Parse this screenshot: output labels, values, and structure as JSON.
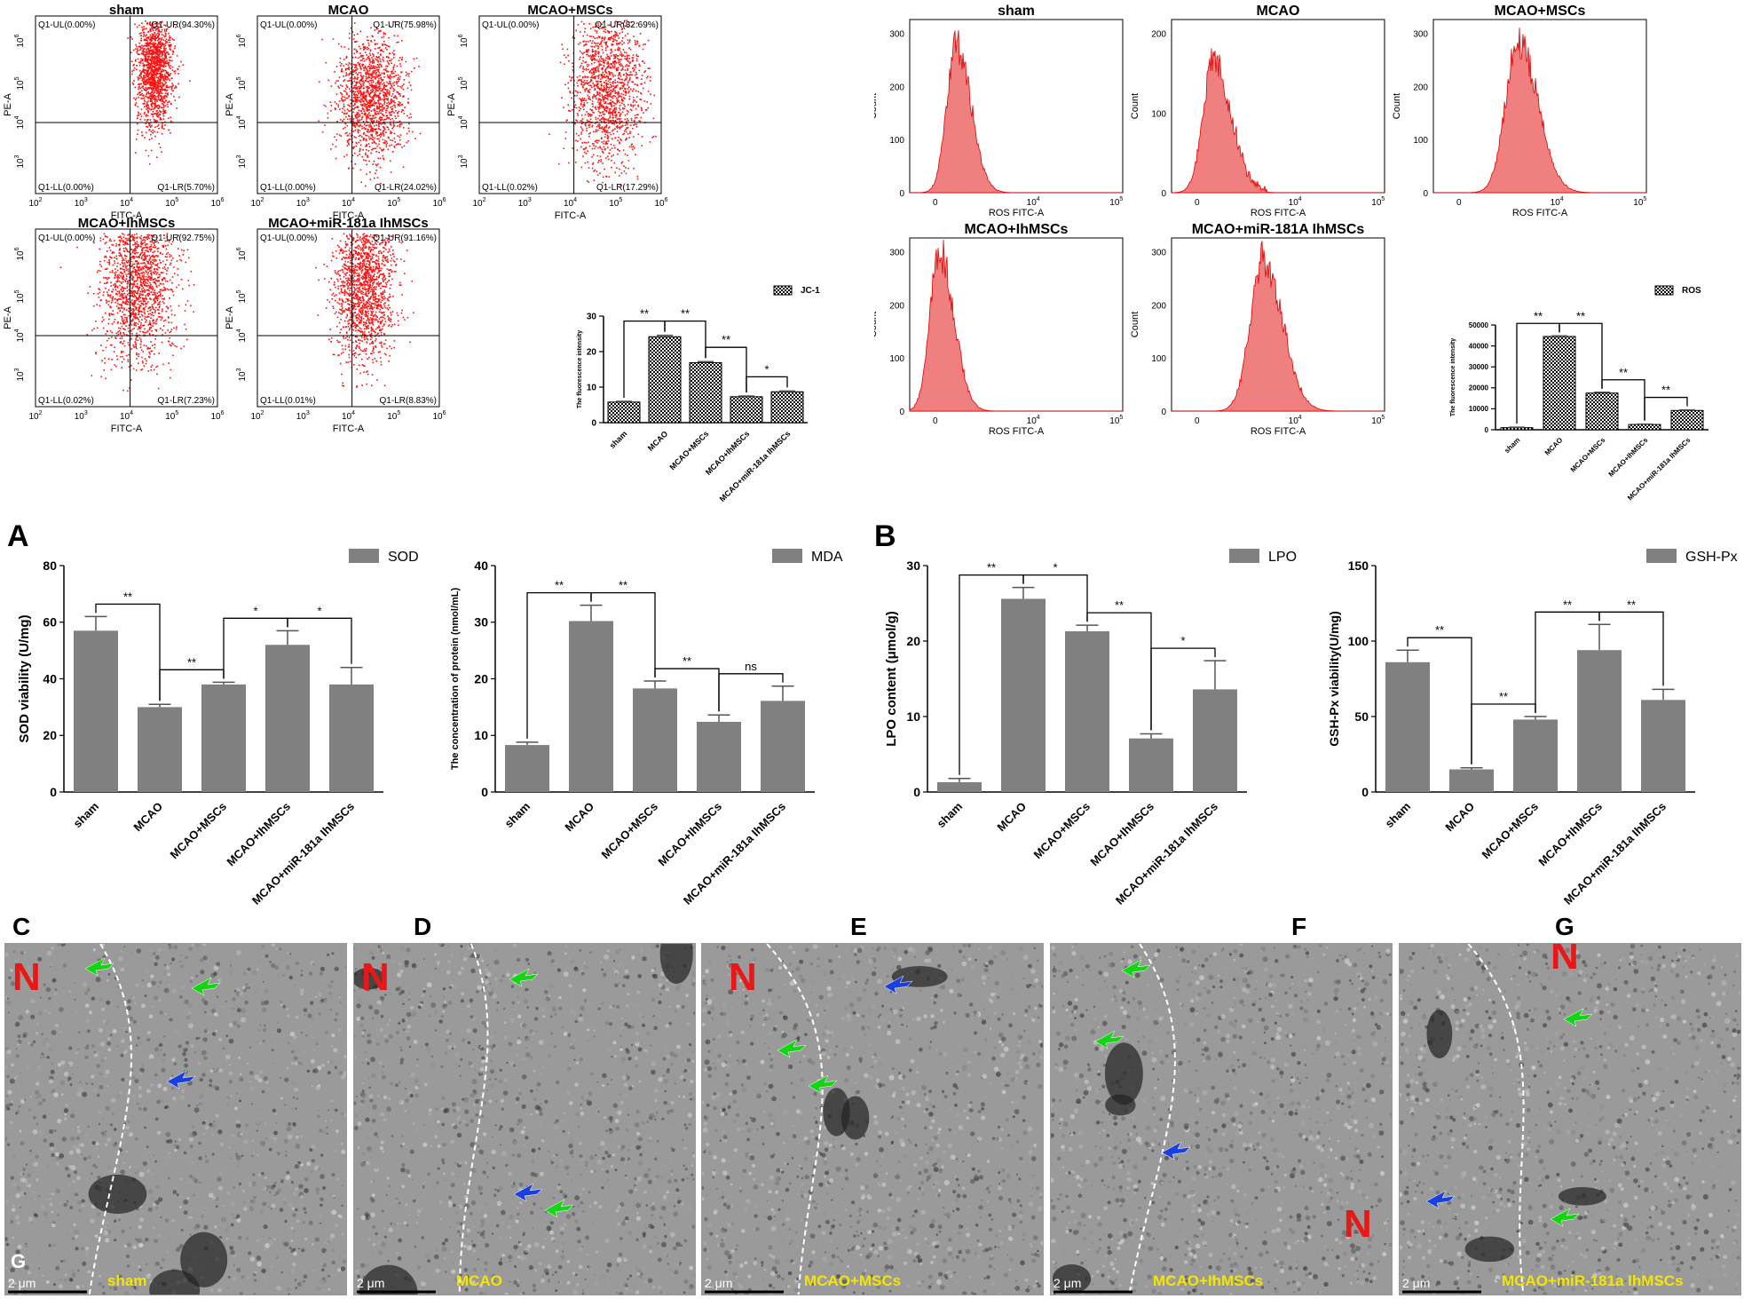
{
  "panel_letters": {
    "A": "A",
    "B": "B",
    "C": "C",
    "D": "D",
    "E": "E",
    "F": "F",
    "G": "G"
  },
  "colors": {
    "dots": "#ff1010",
    "hist_fill": "#f08080",
    "hist_stroke": "#e00000",
    "bar": "#808080",
    "stat_line": "#000000",
    "tem_label": "#f5e600",
    "arrow_green": "#11d611",
    "arrow_blue": "#1a3fe0",
    "nucleus_label": "#e81818"
  },
  "scatter": {
    "axis_x": "FITC-A",
    "axis_y": "PE-A",
    "x_ticks": [
      "10",
      "10",
      "10",
      "10",
      "10"
    ],
    "x_tick_exp": [
      "2",
      "3",
      "4",
      "5",
      "6"
    ],
    "y_ticks": [
      "10",
      "10",
      "10",
      "10"
    ],
    "y_tick_exp": [
      "3",
      "4",
      "5",
      "6"
    ],
    "plots": [
      {
        "title": "sham",
        "ul": "Q1-UL(0.00%)",
        "ur": "Q1-UR(94.30%)",
        "ll": "Q1-LL(0.00%)",
        "lr": "Q1-LR(5.70%)"
      },
      {
        "title": "MCAO",
        "ul": "Q1-UL(0.00%)",
        "ur": "Q1-UR(75.98%)",
        "ll": "Q1-LL(0.00%)",
        "lr": "Q1-LR(24.02%)"
      },
      {
        "title": "MCAO+MSCs",
        "ul": "Q1-UL(0.00%)",
        "ur": "Q1-UR(82.69%)",
        "ll": "Q1-LL(0.02%)",
        "lr": "Q1-LR(17.29%)"
      },
      {
        "title": "MCAO+IhMSCs",
        "ul": "Q1-UL(0.00%)",
        "ur": "Q1-UR(92.75%)",
        "ll": "Q1-LL(0.02%)",
        "lr": "Q1-LR(7.23%)"
      },
      {
        "title": "MCAO+miR-181a IhMSCs",
        "ul": "Q1-UL(0.00%)",
        "ur": "Q1-UR(91.16%)",
        "ll": "Q1-LL(0.01%)",
        "lr": "Q1-LR(8.83%)"
      }
    ]
  },
  "histograms": {
    "axis_x": "ROS FITC-A",
    "axis_y": "Count",
    "x_tick_labels": [
      "0",
      "10",
      "10"
    ],
    "x_tick_exp": [
      "",
      "4",
      "5"
    ],
    "plots": [
      {
        "title": "sham",
        "y_ticks": [
          "0",
          "100",
          "200",
          "300"
        ]
      },
      {
        "title": "MCAO",
        "y_ticks": [
          "0",
          "100",
          "200"
        ]
      },
      {
        "title": "MCAO+MSCs",
        "y_ticks": [
          "0",
          "100",
          "200",
          "300"
        ]
      },
      {
        "title": "MCAO+IhMSCs",
        "y_ticks": [
          "0",
          "100",
          "200",
          "300"
        ]
      },
      {
        "title": "MCAO+miR-181A IhMSCs",
        "y_ticks": [
          "0",
          "100",
          "200",
          "300"
        ]
      }
    ]
  },
  "chart_data": [
    {
      "type": "bar",
      "id": "jc1",
      "legend": "JC-1",
      "ylabel": "The fluorescence intensity",
      "ylim": [
        0,
        30
      ],
      "yticks": [
        0,
        10,
        20,
        30
      ],
      "categories": [
        "sham",
        "MCAO",
        "MCAO+MSCs",
        "MCAO+IhMSCs",
        "MCAO+miR-181a IhMSCs"
      ],
      "values": [
        5.8,
        24.2,
        16.9,
        7.3,
        8.7
      ],
      "errors": [
        0.2,
        0.4,
        0.3,
        0.2,
        0.2
      ],
      "sig": [
        {
          "a": 0,
          "b": 1,
          "label": "**"
        },
        {
          "a": 1,
          "b": 2,
          "label": "**"
        },
        {
          "a": 2,
          "b": 3,
          "label": "**"
        },
        {
          "a": 3,
          "b": 4,
          "label": "*"
        }
      ]
    },
    {
      "type": "bar",
      "id": "ros",
      "legend": "ROS",
      "ylabel": "The fluorescence intensity",
      "ylim": [
        0,
        50000
      ],
      "yticks": [
        0,
        10000,
        20000,
        30000,
        40000,
        50000
      ],
      "categories": [
        "sham",
        "MCAO",
        "MCAO+MSCs",
        "MCAO+IhMSCs",
        "MCAO+miR-181a IhMSCs"
      ],
      "values": [
        1000,
        44500,
        17500,
        2500,
        9200
      ],
      "errors": [
        200,
        300,
        400,
        200,
        300
      ],
      "sig": [
        {
          "a": 0,
          "b": 1,
          "label": "**"
        },
        {
          "a": 1,
          "b": 2,
          "label": "**"
        },
        {
          "a": 2,
          "b": 3,
          "label": "**"
        },
        {
          "a": 3,
          "b": 4,
          "label": "**"
        }
      ]
    },
    {
      "type": "bar",
      "id": "sod",
      "legend": "SOD",
      "ylabel": "SOD viability (U/mg)",
      "ylim": [
        0,
        80
      ],
      "yticks": [
        0,
        20,
        40,
        60,
        80
      ],
      "categories": [
        "sham",
        "MCAO",
        "MCAO+MSCs",
        "MCAO+IhMSCs",
        "MCAO+miR-181a IhMSCs"
      ],
      "values": [
        57,
        30,
        38,
        52,
        38
      ],
      "errors": [
        5,
        1,
        0.8,
        5,
        6
      ],
      "sig": [
        {
          "a": 0,
          "b": 1,
          "label": "**"
        },
        {
          "a": 1,
          "b": 2,
          "label": "**"
        },
        {
          "a": 2,
          "b": 3,
          "label": "*"
        },
        {
          "a": 3,
          "b": 4,
          "label": "*"
        }
      ]
    },
    {
      "type": "bar",
      "id": "mda",
      "legend": "MDA",
      "ylabel": "The concentration of protein (nmol/mL)",
      "ylim": [
        0,
        40
      ],
      "yticks": [
        0,
        10,
        20,
        30,
        40
      ],
      "categories": [
        "sham",
        "MCAO",
        "MCAO+MSCs",
        "MCAO+IhMSCs",
        "MCAO+miR-181a IhMSCs"
      ],
      "values": [
        8.3,
        30.2,
        18.3,
        12.4,
        16.1
      ],
      "errors": [
        0.5,
        2.8,
        1.3,
        1.2,
        2.6
      ],
      "sig": [
        {
          "a": 0,
          "b": 1,
          "label": "**"
        },
        {
          "a": 1,
          "b": 2,
          "label": "**"
        },
        {
          "a": 2,
          "b": 3,
          "label": "**"
        },
        {
          "a": 3,
          "b": 4,
          "label": "ns"
        }
      ]
    },
    {
      "type": "bar",
      "id": "lpo",
      "legend": "LPO",
      "ylabel": "LPO content (μmol/g)",
      "ylim": [
        0,
        30
      ],
      "yticks": [
        0,
        10,
        20,
        30
      ],
      "categories": [
        "sham",
        "MCAO",
        "MCAO+MSCs",
        "MCAO+IhMSCs",
        "MCAO+miR-181a IhMSCs"
      ],
      "values": [
        1.3,
        25.6,
        21.3,
        7.1,
        13.6
      ],
      "errors": [
        0.5,
        1.5,
        0.8,
        0.6,
        3.8
      ],
      "sig": [
        {
          "a": 0,
          "b": 1,
          "label": "**"
        },
        {
          "a": 1,
          "b": 2,
          "label": "*"
        },
        {
          "a": 2,
          "b": 3,
          "label": "**"
        },
        {
          "a": 3,
          "b": 4,
          "label": "*"
        }
      ]
    },
    {
      "type": "bar",
      "id": "gsh",
      "legend": "GSH-Px",
      "ylabel": "GSH-Px viability(U/mg)",
      "ylim": [
        0,
        150
      ],
      "yticks": [
        0,
        50,
        100,
        150
      ],
      "categories": [
        "sham",
        "MCAO",
        "MCAO+MSCs",
        "MCAO+IhMSCs",
        "MCAO+miR-181a IhMSCs"
      ],
      "values": [
        86,
        15,
        48,
        94,
        61
      ],
      "errors": [
        8,
        1,
        2,
        17,
        7
      ],
      "sig": [
        {
          "a": 0,
          "b": 1,
          "label": "**"
        },
        {
          "a": 1,
          "b": 2,
          "label": "**"
        },
        {
          "a": 2,
          "b": 3,
          "label": "**"
        },
        {
          "a": 3,
          "b": 4,
          "label": "**"
        }
      ]
    }
  ],
  "tem": [
    {
      "scale": "2 μm",
      "label": "sham",
      "n": "N",
      "g": "G"
    },
    {
      "scale": "2 μm",
      "label": "MCAO",
      "n": "N"
    },
    {
      "scale": "2 μm",
      "label": "MCAO+MSCs",
      "n": "N"
    },
    {
      "scale": "2 μm",
      "label": "MCAO+IhMSCs",
      "n": "N"
    },
    {
      "scale": "2 μm",
      "label": "MCAO+miR-181a IhMSCs",
      "n": "N"
    }
  ]
}
